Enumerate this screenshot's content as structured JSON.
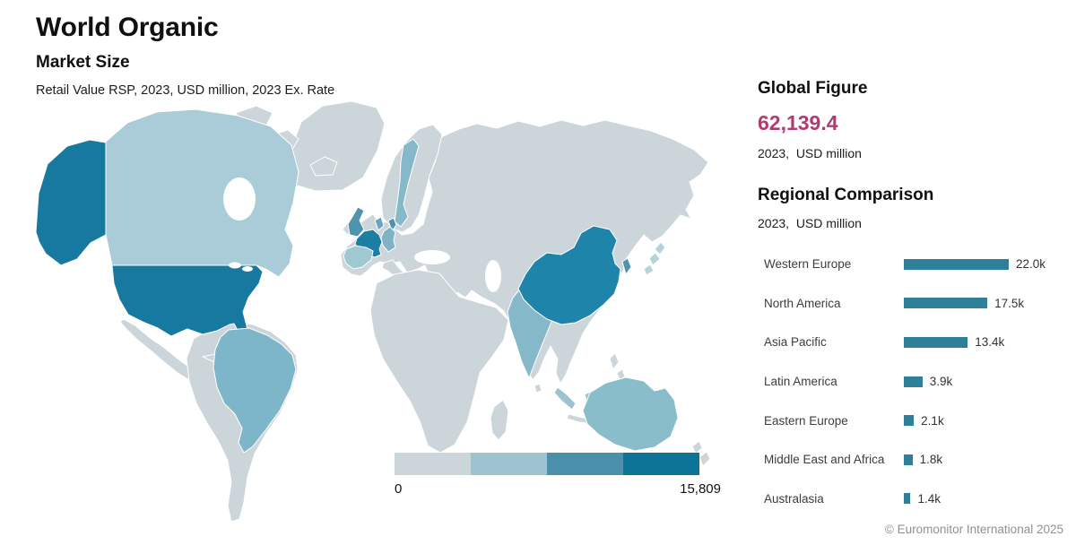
{
  "header": {
    "title": "World Organic",
    "subtitle": "Market Size",
    "description": "Retail Value RSP, 2023, USD million, 2023 Ex. Rate"
  },
  "global_figure": {
    "heading": "Global Figure",
    "value": "62,139.4",
    "value_numeric": 62139.4,
    "caption": "2023,  USD million",
    "value_color": "#b13a72"
  },
  "regional": {
    "heading": "Regional Comparison",
    "caption": "2023,  USD million",
    "bar_color": "#2e7f98",
    "rows": [
      {
        "label": "Western Europe",
        "value_thousands": 22.0,
        "value_label": "22.0k"
      },
      {
        "label": "North America",
        "value_thousands": 17.5,
        "value_label": "17.5k"
      },
      {
        "label": "Asia Pacific",
        "value_thousands": 13.4,
        "value_label": "13.4k"
      },
      {
        "label": "Latin America",
        "value_thousands": 3.9,
        "value_label": "3.9k"
      },
      {
        "label": "Eastern Europe",
        "value_thousands": 2.1,
        "value_label": "2.1k"
      },
      {
        "label": "Middle East and Africa",
        "value_thousands": 1.8,
        "value_label": "1.8k"
      },
      {
        "label": "Australasia",
        "value_thousands": 1.4,
        "value_label": "1.4k"
      }
    ]
  },
  "map": {
    "legend": {
      "min_label": "0",
      "max_label": "15,809",
      "min": 0,
      "max": 15809,
      "colors": [
        "#ccd5da",
        "#9cc3cf",
        "#4a90aa",
        "#0d7397"
      ]
    },
    "fills": {
      "base": "#cbd5da",
      "usa": "#17799f",
      "alaska": "#17799f",
      "canada": "#a9ccd8",
      "brazil": "#7db6c8",
      "france": "#1b7ea2",
      "uk": "#4f93ac",
      "ireland": "#cbd5da",
      "germany": "#7fb2c4",
      "benelux": "#6aa6bb",
      "denmark": "#4f93ac",
      "sweden": "#85b9c9",
      "spain": "#9fc8d3",
      "india": "#85b9c9",
      "china": "#1f84a9",
      "korea": "#4f93ac",
      "japan": "#b7d3da",
      "indonesia": "#9cc4d0",
      "australia": "#8abdca",
      "tasmania": "#2d84a4",
      "newzealand": "#cbd5da"
    }
  },
  "footer": {
    "copyright": "© Euromonitor International 2025"
  },
  "chart_data": [
    {
      "type": "bar",
      "orientation": "horizontal",
      "title": "Regional Comparison",
      "subtitle": "2023,  USD million",
      "categories": [
        "Western Europe",
        "North America",
        "Asia Pacific",
        "Latin America",
        "Eastern Europe",
        "Middle East and Africa",
        "Australasia"
      ],
      "values": [
        22000,
        17500,
        13400,
        3900,
        2100,
        1800,
        1400
      ],
      "value_labels": [
        "22.0k",
        "17.5k",
        "13.4k",
        "3.9k",
        "2.1k",
        "1.8k",
        "1.4k"
      ],
      "xlabel": "",
      "ylabel": "",
      "xlim": [
        0,
        23000
      ],
      "grid": false,
      "legend": "none",
      "bar_color": "#2e7f98"
    },
    {
      "type": "heatmap",
      "subtype": "choropleth-world-map",
      "title": "World Organic Market Size",
      "subtitle": "Retail Value RSP, 2023, USD million, 2023 Ex. Rate",
      "scale": {
        "min": 0,
        "max": 15809,
        "min_label": "0",
        "max_label": "15,809",
        "colors": [
          "#ccd5da",
          "#9cc3cf",
          "#4a90aa",
          "#0d7397"
        ]
      },
      "highlighted": [
        {
          "region": "United States",
          "level": "high"
        },
        {
          "region": "France",
          "level": "high"
        },
        {
          "region": "China",
          "level": "high"
        },
        {
          "region": "United Kingdom",
          "level": "medium"
        },
        {
          "region": "Germany",
          "level": "medium"
        },
        {
          "region": "South Korea",
          "level": "medium"
        },
        {
          "region": "Canada",
          "level": "low"
        },
        {
          "region": "Brazil",
          "level": "low"
        },
        {
          "region": "Sweden",
          "level": "low"
        },
        {
          "region": "Spain",
          "level": "low"
        },
        {
          "region": "India",
          "level": "low"
        },
        {
          "region": "Indonesia",
          "level": "low"
        },
        {
          "region": "Australia",
          "level": "low"
        }
      ]
    }
  ]
}
